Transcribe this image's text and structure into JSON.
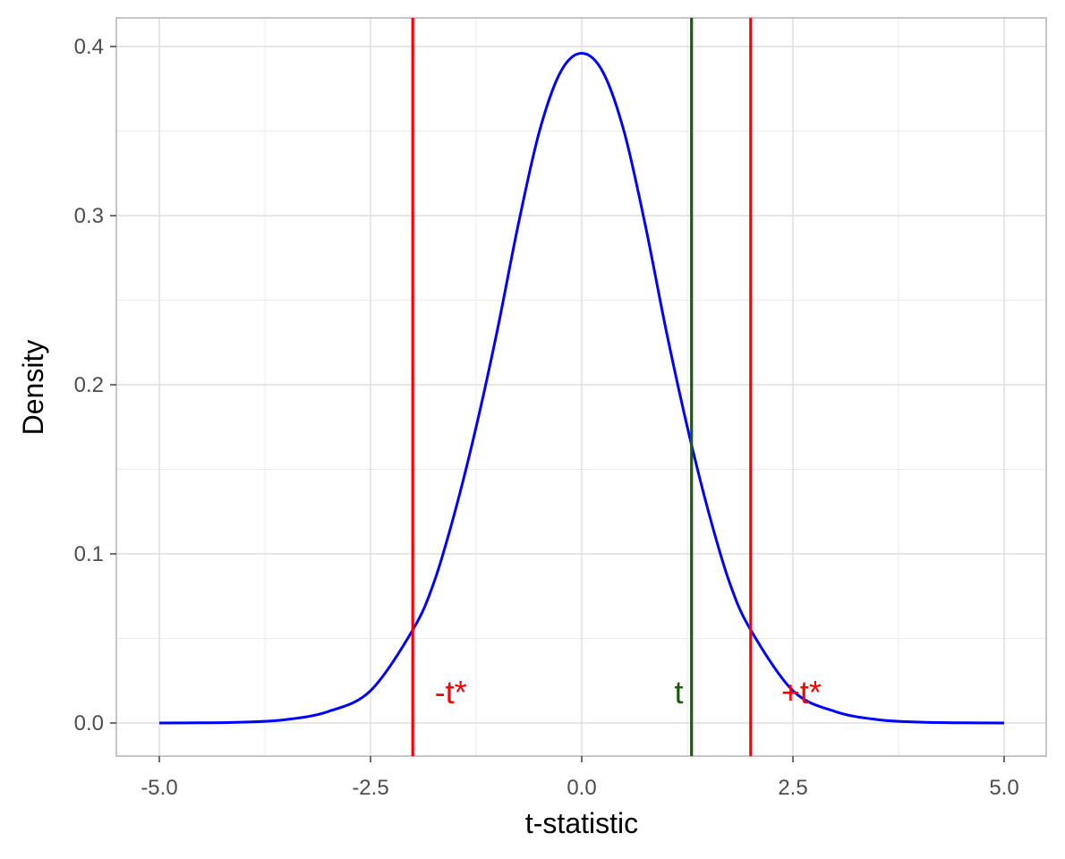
{
  "chart_data": {
    "type": "line",
    "title": "",
    "xlabel": "t-statistic",
    "ylabel": "Density",
    "xlim": [
      -5.0,
      5.0
    ],
    "ylim": [
      0.0,
      0.4
    ],
    "x_ticks": [
      -5.0,
      -2.5,
      0.0,
      2.5,
      5.0
    ],
    "x_tick_labels": [
      "-5.0",
      "-2.5",
      "0.0",
      "2.5",
      "5.0"
    ],
    "y_ticks": [
      0.0,
      0.1,
      0.2,
      0.3,
      0.4
    ],
    "y_tick_labels": [
      "0.0",
      "0.1",
      "0.2",
      "0.3",
      "0.4"
    ],
    "grid": true,
    "legend": "none",
    "series": [
      {
        "color": "#0000ff",
        "x": [
          -5.0,
          -4.5,
          -4.0,
          -3.5,
          -3.0,
          -2.5,
          -2.0,
          -1.75,
          -1.5,
          -1.25,
          -1.0,
          -0.75,
          -0.5,
          -0.25,
          0.0,
          0.25,
          0.5,
          0.75,
          1.0,
          1.25,
          1.5,
          1.75,
          2.0,
          2.5,
          3.0,
          3.5,
          4.0,
          4.5,
          5.0
        ],
        "y": [
          0.0,
          0.0001,
          0.0005,
          0.002,
          0.0068,
          0.0191,
          0.055,
          0.083,
          0.125,
          0.175,
          0.232,
          0.295,
          0.35,
          0.385,
          0.396,
          0.385,
          0.35,
          0.295,
          0.232,
          0.175,
          0.125,
          0.083,
          0.055,
          0.0191,
          0.0068,
          0.002,
          0.0005,
          0.0001,
          0.0
        ]
      }
    ],
    "vlines": [
      {
        "x": -2.0,
        "color": "#ff0000"
      },
      {
        "x": 2.0,
        "color": "#ff0000"
      },
      {
        "x": 1.3,
        "color": "#1a5c0a"
      }
    ],
    "annotations": [
      {
        "text": "-t*",
        "x": -1.55,
        "y": 0.018,
        "color": "#ff0000"
      },
      {
        "text": "t",
        "x": 1.15,
        "y": 0.018,
        "color": "#1a5c0a"
      },
      {
        "text": "+t*",
        "x": 2.6,
        "y": 0.018,
        "color": "#ff0000"
      }
    ]
  }
}
